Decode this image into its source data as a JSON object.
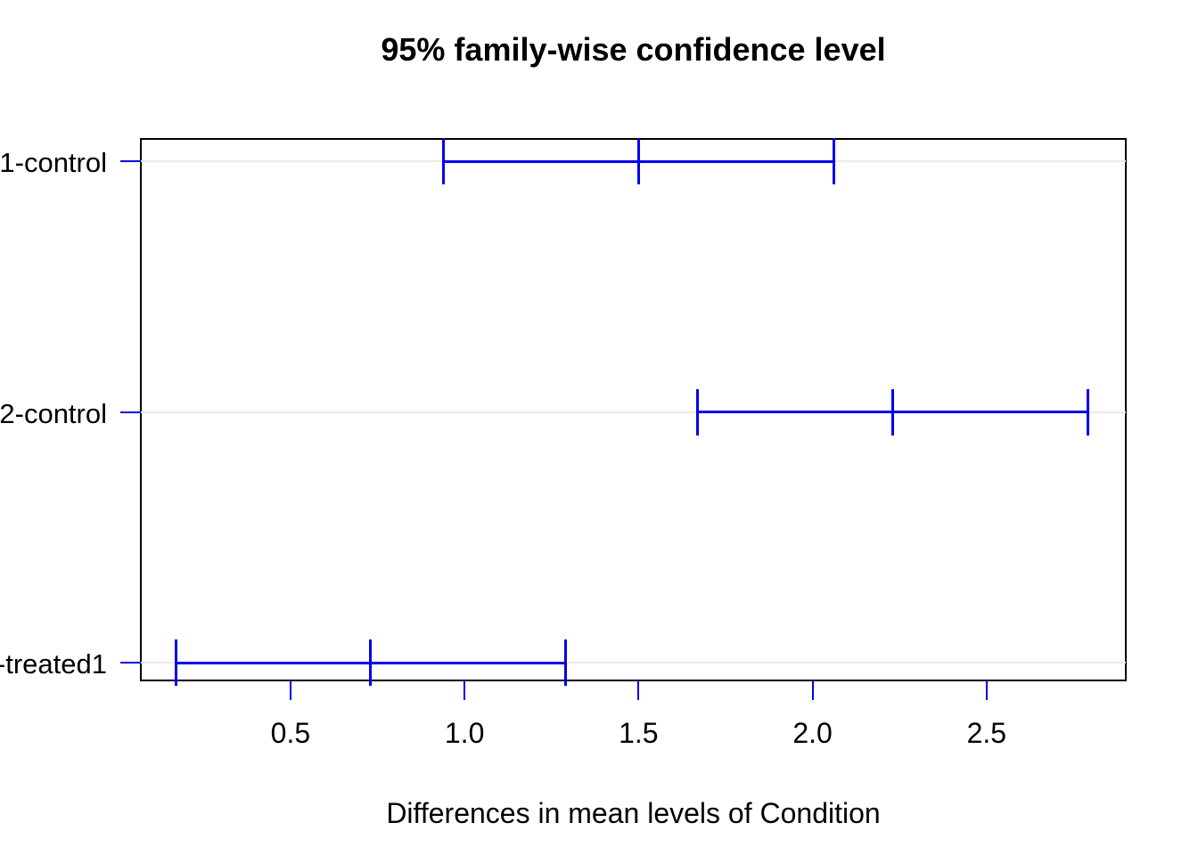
{
  "chart_data": {
    "type": "ci_interval",
    "orientation": "horizontal",
    "title": "95% family-wise confidence level",
    "xlabel": "Differences in mean levels of Condition",
    "x_tick_labels": [
      "0.5",
      "1.0",
      "1.5",
      "2.0",
      "2.5"
    ],
    "xlim": [
      0.07,
      2.9
    ],
    "grid": "light horizontal line per comparison row",
    "legend": null,
    "rows": [
      {
        "label": "1-control",
        "lower": 0.94,
        "center": 1.5,
        "upper": 2.06
      },
      {
        "label": "2-control",
        "lower": 1.67,
        "center": 2.23,
        "upper": 2.79
      },
      {
        "label": "-treated1",
        "lower": 0.17,
        "center": 0.73,
        "upper": 1.29
      }
    ],
    "colors": {
      "interval": "#0000EE",
      "grid": "#EAEAEA",
      "box": "#000000",
      "text": "#000000",
      "background": "#FFFFFF"
    }
  }
}
